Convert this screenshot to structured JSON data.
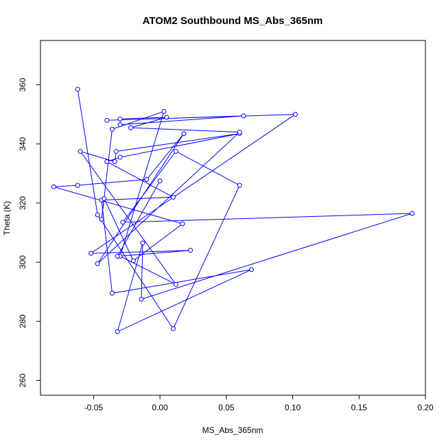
{
  "chart_data": {
    "type": "line",
    "title": "ATOM2 Southbound MS_Abs_365nm",
    "xlabel": "MS_Abs_365nm",
    "ylabel": "Theta (K)",
    "xlim": [
      -0.09,
      0.2
    ],
    "ylim": [
      255,
      375
    ],
    "xticks": [
      -0.05,
      0.0,
      0.05,
      0.1,
      0.15,
      0.2
    ],
    "xtick_labels": [
      "-0.05",
      "0.00",
      "0.05",
      "0.10",
      "0.15",
      "0.20"
    ],
    "yticks": [
      260,
      280,
      300,
      320,
      340,
      360
    ],
    "ytick_labels": [
      "260",
      "280",
      "300",
      "320",
      "340",
      "360"
    ],
    "grid": false,
    "legend": "none",
    "series_color": "#0000ff",
    "markers": "open-circle",
    "x": [
      -0.062,
      -0.047,
      0.01,
      0.06,
      0.012,
      -0.028,
      0.19,
      -0.014,
      -0.013,
      -0.032,
      0.069,
      -0.036,
      -0.044,
      0.01,
      -0.04,
      -0.03,
      0.06,
      -0.033,
      -0.034,
      -0.06,
      0.012,
      -0.03,
      0.003,
      -0.036,
      -0.044,
      -0.042,
      -0.02,
      0.017,
      -0.08,
      -0.062,
      -0.01,
      0.018,
      -0.047,
      0.06,
      -0.022,
      0.005,
      -0.03,
      -0.03,
      0.063,
      -0.04,
      0.102,
      -0.052,
      0.023,
      -0.032,
      0.0
    ],
    "y": [
      358.5,
      316,
      277.5,
      326,
      337.5,
      313.5,
      316.5,
      287.5,
      306.5,
      276.5,
      297.5,
      289.5,
      321,
      322,
      334,
      335.5,
      343.5,
      337.5,
      334,
      337.5,
      292.5,
      302,
      351,
      345,
      314.5,
      321.5,
      300.5,
      313,
      325.5,
      326,
      328,
      343.5,
      299.5,
      344,
      345.5,
      349,
      348.5,
      346.5,
      349.5,
      348,
      350,
      303,
      304,
      302,
      327.5
    ]
  }
}
